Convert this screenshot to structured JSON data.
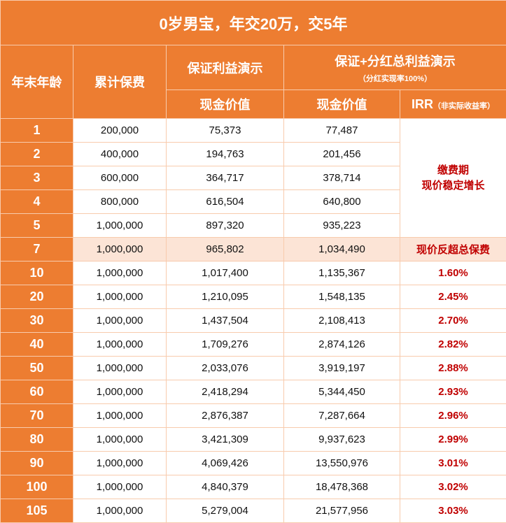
{
  "title": "0岁男宝，年交20万，交5年",
  "header": {
    "age": "年末年龄",
    "premium": "累计保费",
    "guaranteed": "保证利益演示",
    "total": "保证+分红总利益演示",
    "total_note": "（分红实现率100%）",
    "cash_value_1": "现金价值",
    "cash_value_2": "现金价值",
    "irr": "IRR",
    "irr_note": "（非实际收益率）"
  },
  "payment_period_note": [
    "缴费期",
    "现价稳定增长"
  ],
  "colors": {
    "header_bg": "#ed7d31",
    "highlight_bg": "#fce4d6",
    "accent_red": "#c00000",
    "border": "#f8cbad"
  },
  "rows": [
    {
      "age": "1",
      "premium": "200,000",
      "guaranteed": "75,373",
      "total": "77,487",
      "irr": ""
    },
    {
      "age": "2",
      "premium": "400,000",
      "guaranteed": "194,763",
      "total": "201,456",
      "irr": ""
    },
    {
      "age": "3",
      "premium": "600,000",
      "guaranteed": "364,717",
      "total": "378,714",
      "irr": ""
    },
    {
      "age": "4",
      "premium": "800,000",
      "guaranteed": "616,504",
      "total": "640,800",
      "irr": ""
    },
    {
      "age": "5",
      "premium": "1,000,000",
      "guaranteed": "897,320",
      "total": "935,223",
      "irr": ""
    },
    {
      "age": "7",
      "premium": "1,000,000",
      "guaranteed": "965,802",
      "total": "1,034,490",
      "irr": "现价反超总保费",
      "highlight": true
    },
    {
      "age": "10",
      "premium": "1,000,000",
      "guaranteed": "1,017,400",
      "total": "1,135,367",
      "irr": "1.60%"
    },
    {
      "age": "20",
      "premium": "1,000,000",
      "guaranteed": "1,210,095",
      "total": "1,548,135",
      "irr": "2.45%"
    },
    {
      "age": "30",
      "premium": "1,000,000",
      "guaranteed": "1,437,504",
      "total": "2,108,413",
      "irr": "2.70%"
    },
    {
      "age": "40",
      "premium": "1,000,000",
      "guaranteed": "1,709,276",
      "total": "2,874,126",
      "irr": "2.82%"
    },
    {
      "age": "50",
      "premium": "1,000,000",
      "guaranteed": "2,033,076",
      "total": "3,919,197",
      "irr": "2.88%"
    },
    {
      "age": "60",
      "premium": "1,000,000",
      "guaranteed": "2,418,294",
      "total": "5,344,450",
      "irr": "2.93%"
    },
    {
      "age": "70",
      "premium": "1,000,000",
      "guaranteed": "2,876,387",
      "total": "7,287,664",
      "irr": "2.96%"
    },
    {
      "age": "80",
      "premium": "1,000,000",
      "guaranteed": "3,421,309",
      "total": "9,937,623",
      "irr": "2.99%"
    },
    {
      "age": "90",
      "premium": "1,000,000",
      "guaranteed": "4,069,426",
      "total": "13,550,976",
      "irr": "3.01%"
    },
    {
      "age": "100",
      "premium": "1,000,000",
      "guaranteed": "4,840,379",
      "total": "18,478,368",
      "irr": "3.02%"
    },
    {
      "age": "105",
      "premium": "1,000,000",
      "guaranteed": "5,279,004",
      "total": "21,577,956",
      "irr": "3.03%"
    }
  ]
}
